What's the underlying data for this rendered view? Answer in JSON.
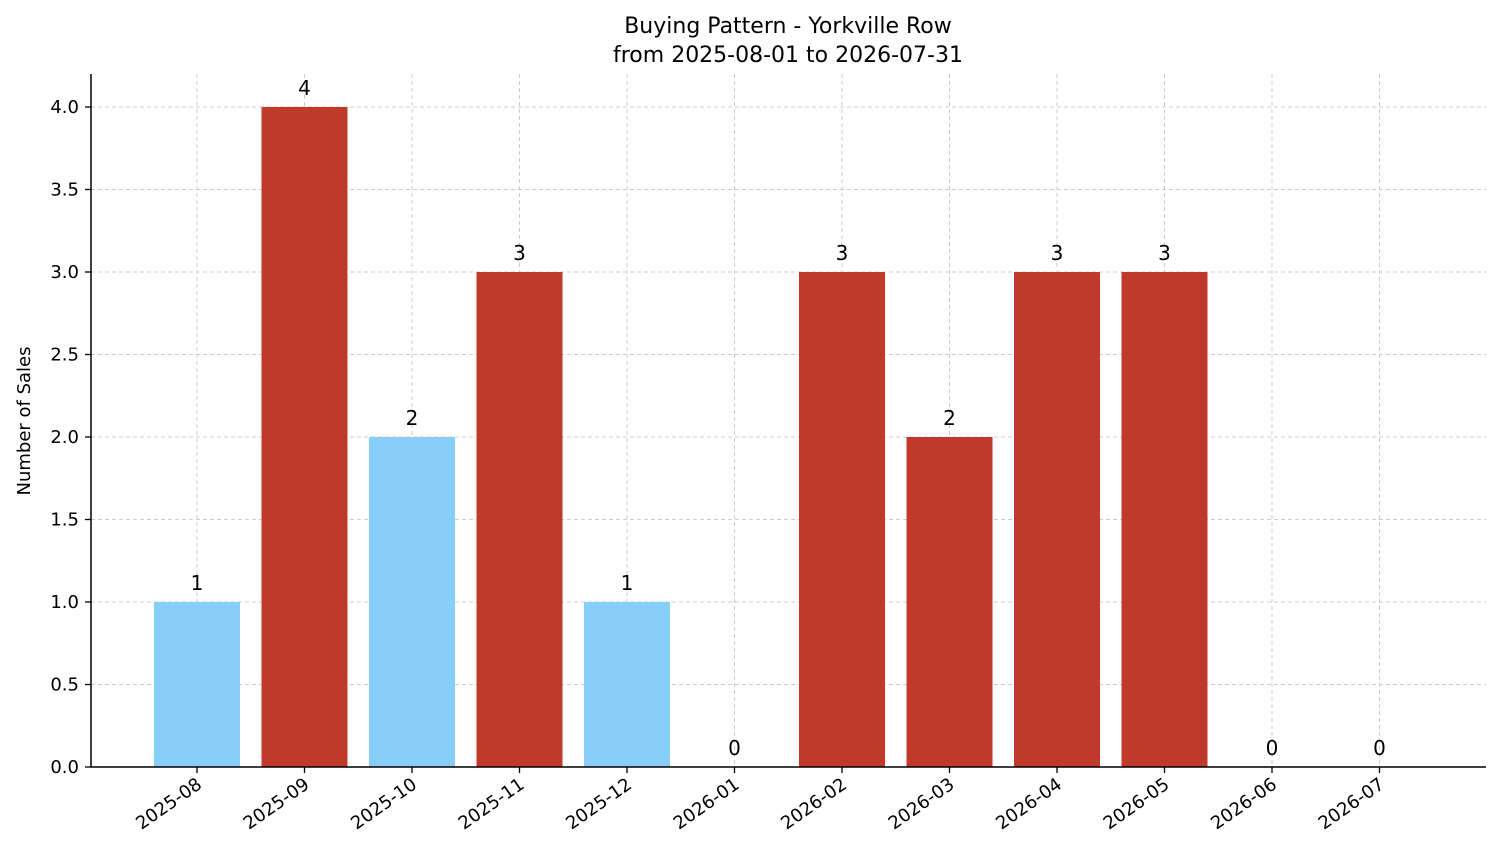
{
  "chart_data": {
    "type": "bar",
    "title": "Buying Pattern - Yorkville Row",
    "subtitle": "from 2025-08-01 to 2026-07-31",
    "xlabel": "",
    "ylabel": "Number of Sales",
    "categories": [
      "2025-08",
      "2025-09",
      "2025-10",
      "2025-11",
      "2025-12",
      "2026-01",
      "2026-02",
      "2026-03",
      "2026-04",
      "2026-05",
      "2026-06",
      "2026-07"
    ],
    "values": [
      1,
      4,
      2,
      3,
      1,
      0,
      3,
      2,
      3,
      3,
      0,
      0
    ],
    "bar_colors": [
      "#87cefa",
      "#c0392b",
      "#87cefa",
      "#c0392b",
      "#87cefa",
      "#c0392b",
      "#c0392b",
      "#c0392b",
      "#c0392b",
      "#c0392b",
      "#c0392b",
      "#c0392b"
    ],
    "ylim": [
      0,
      4.2
    ],
    "yticks": [
      "0.0",
      "0.5",
      "1.0",
      "1.5",
      "2.0",
      "2.5",
      "3.0",
      "3.5",
      "4.0"
    ],
    "grid": true,
    "legend": "none"
  }
}
